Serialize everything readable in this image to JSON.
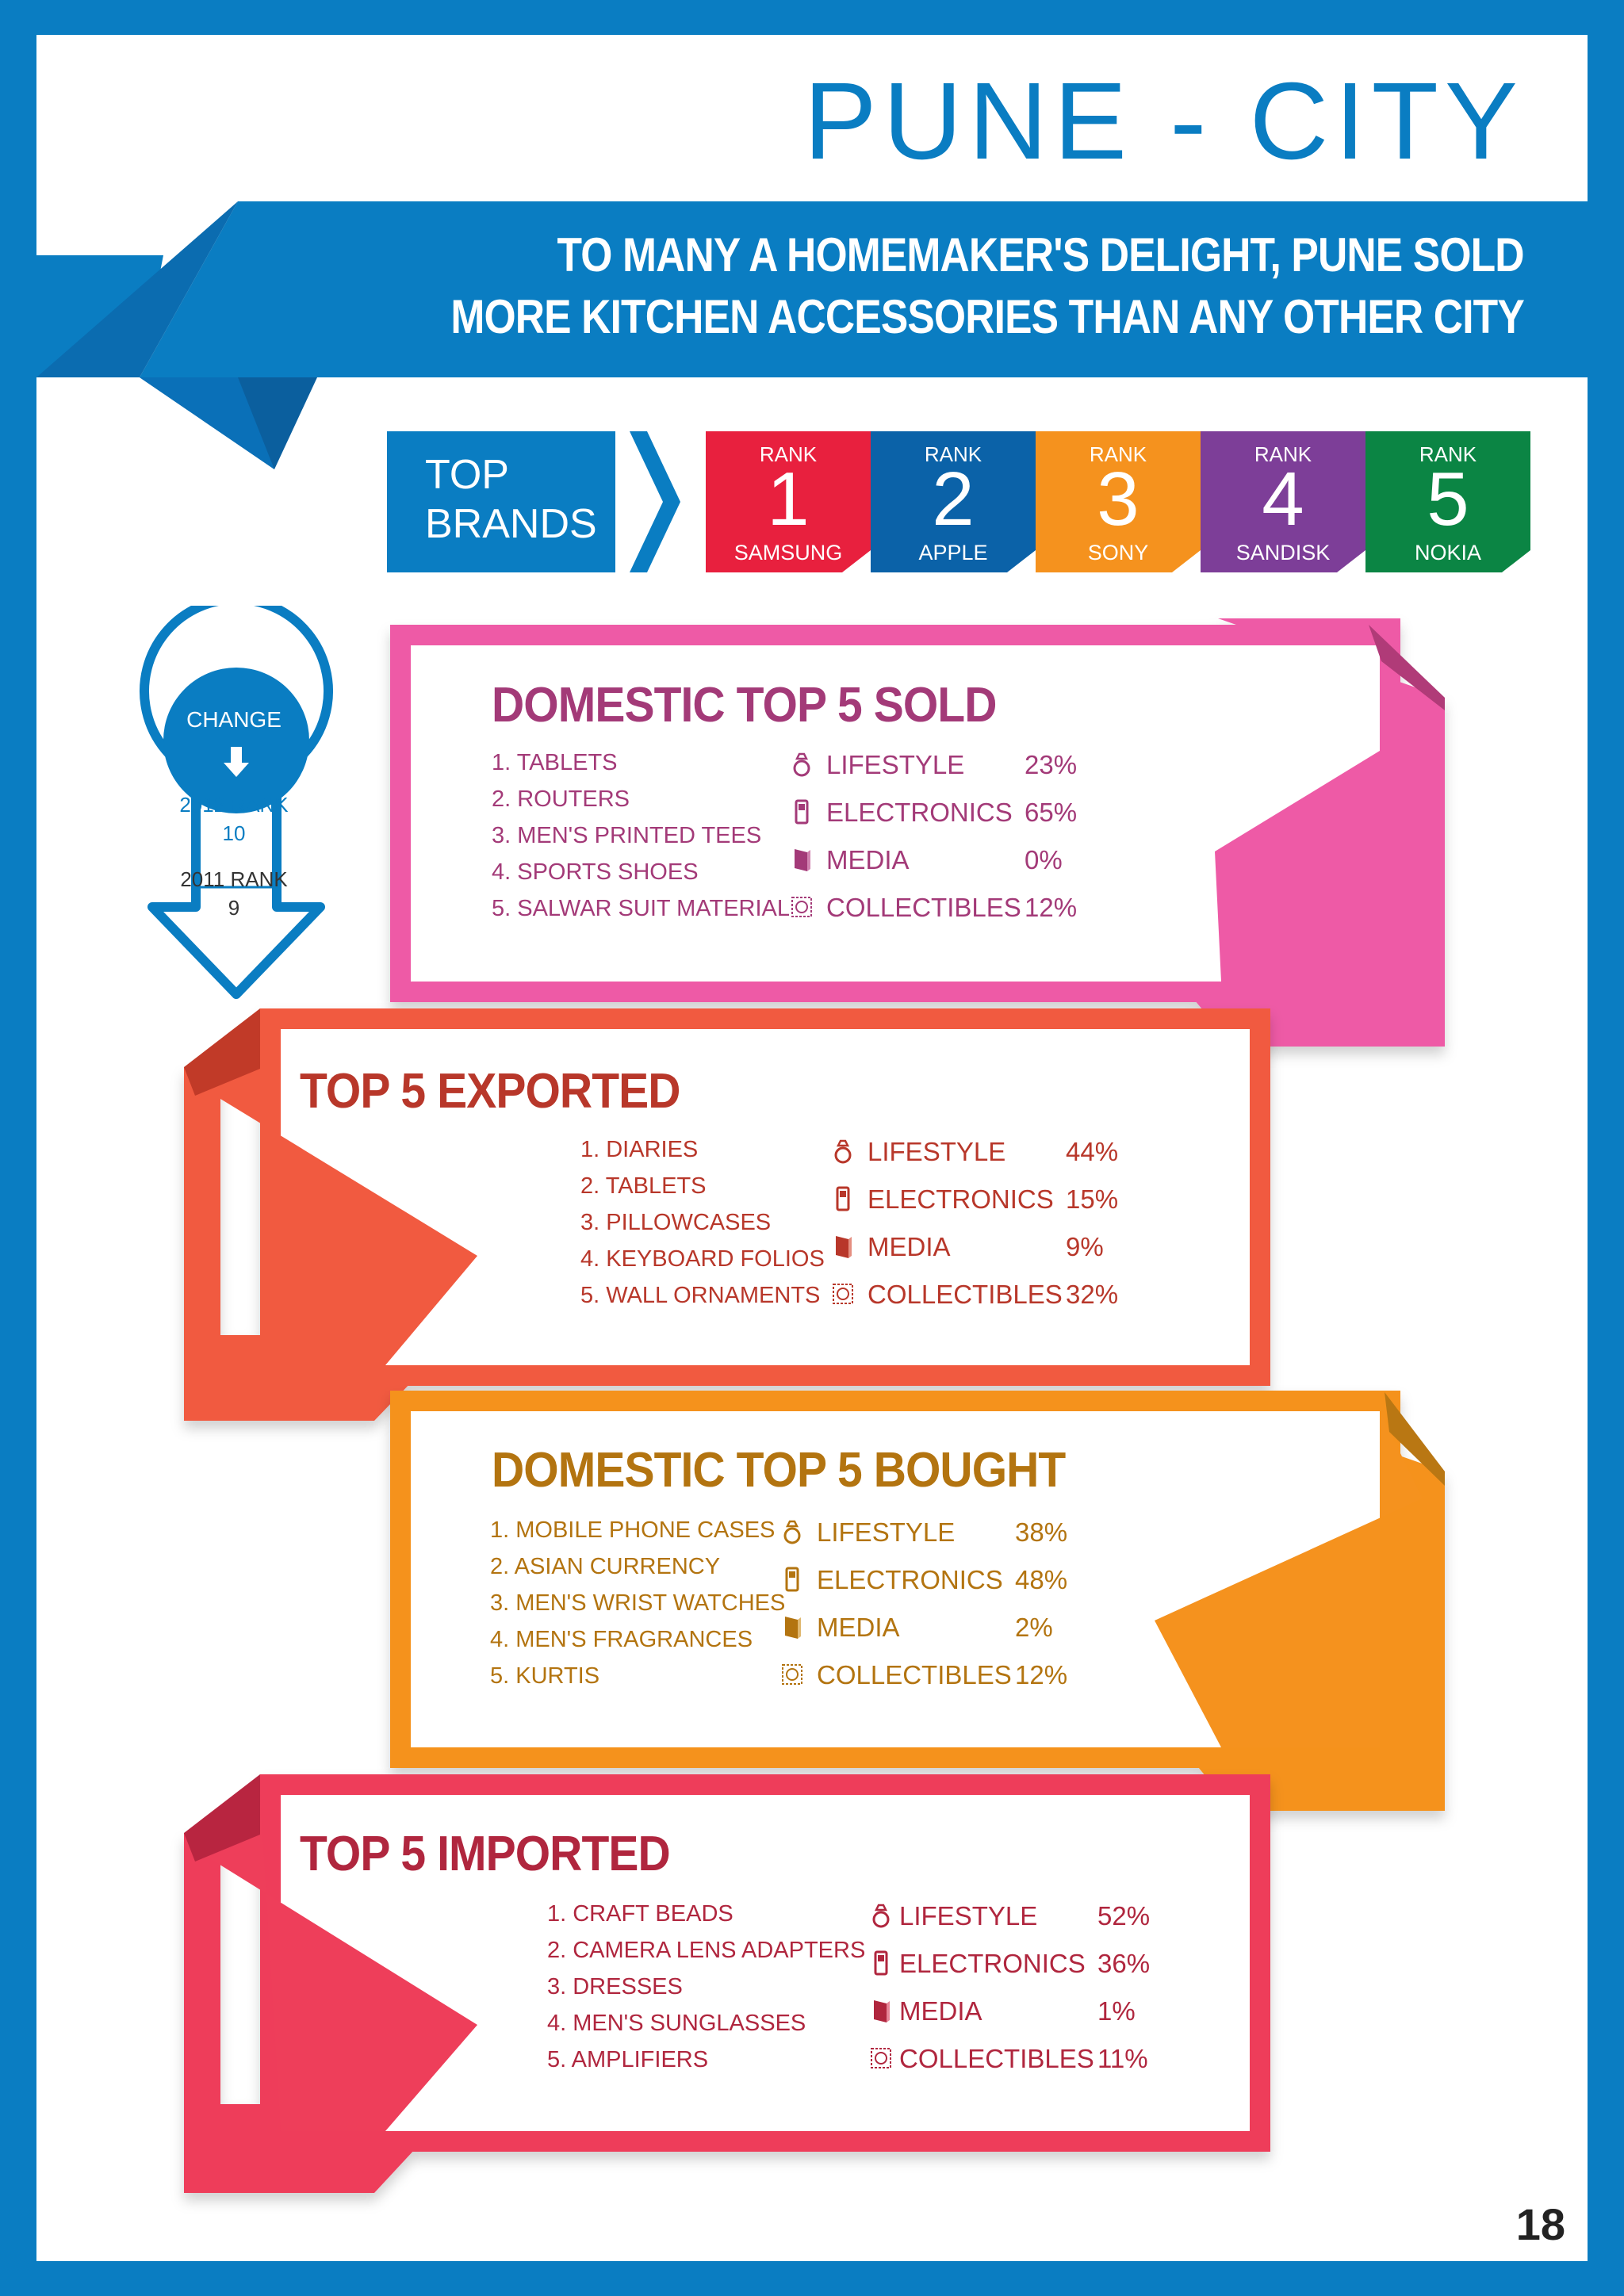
{
  "header": {
    "title": "PUNE - CITY",
    "subtitle_line1": "TO MANY A HOMEMAKER'S DELIGHT, PUNE SOLD",
    "subtitle_line2": "MORE KITCHEN ACCESSORIES THAN ANY OTHER CITY"
  },
  "brands": {
    "label_line1": "TOP",
    "label_line2": "BRANDS",
    "items": [
      {
        "rank_label": "RANK",
        "rank": "1",
        "name": "SAMSUNG",
        "color": "#e8203e"
      },
      {
        "rank_label": "RANK",
        "rank": "2",
        "name": "APPLE",
        "color": "#0b62a8"
      },
      {
        "rank_label": "RANK",
        "rank": "3",
        "name": "SONY",
        "color": "#f5921e"
      },
      {
        "rank_label": "RANK",
        "rank": "4",
        "name": "SANDISK",
        "color": "#7d3e98"
      },
      {
        "rank_label": "RANK",
        "rank": "5",
        "name": "NOKIA",
        "color": "#0b8544"
      }
    ]
  },
  "change": {
    "label": "CHANGE",
    "rank_2012_label": "2012 RANK",
    "rank_2012_value": "10",
    "rank_2011_label": "2011 RANK",
    "rank_2011_value": "9"
  },
  "sections": [
    {
      "title": "DOMESTIC TOP 5 SOLD",
      "color": "#ee5aa6",
      "text_color": "#a33a78",
      "items": [
        "1. TABLETS",
        "2. ROUTERS",
        "3. MEN'S PRINTED TEES",
        "4. SPORTS SHOES",
        "5. SALWAR SUIT MATERIAL"
      ],
      "categories": [
        {
          "icon": "ring-icon",
          "label": "LIFESTYLE",
          "pct": "23%"
        },
        {
          "icon": "phone-icon",
          "label": "ELECTRONICS",
          "pct": "65%"
        },
        {
          "icon": "book-icon",
          "label": "MEDIA",
          "pct": "0%"
        },
        {
          "icon": "stamp-icon",
          "label": "COLLECTIBLES",
          "pct": "12%"
        }
      ]
    },
    {
      "title": "TOP 5 EXPORTED",
      "color": "#f15a40",
      "text_color": "#b8372a",
      "items": [
        "1. DIARIES",
        "2. TABLETS",
        "3. PILLOWCASES",
        "4. KEYBOARD FOLIOS",
        "5. WALL ORNAMENTS"
      ],
      "categories": [
        {
          "icon": "ring-icon",
          "label": "LIFESTYLE",
          "pct": "44%"
        },
        {
          "icon": "phone-icon",
          "label": "ELECTRONICS",
          "pct": "15%"
        },
        {
          "icon": "book-icon",
          "label": "MEDIA",
          "pct": "9%"
        },
        {
          "icon": "stamp-icon",
          "label": "COLLECTIBLES",
          "pct": "32%"
        }
      ]
    },
    {
      "title": "DOMESTIC TOP 5 BOUGHT",
      "color": "#f5921e",
      "text_color": "#b37410",
      "items": [
        "1. MOBILE PHONE CASES",
        "2. ASIAN CURRENCY",
        "3. MEN'S WRIST WATCHES",
        "4. MEN'S FRAGRANCES",
        "5. KURTIS"
      ],
      "categories": [
        {
          "icon": "ring-icon",
          "label": "LIFESTYLE",
          "pct": "38%"
        },
        {
          "icon": "phone-icon",
          "label": "ELECTRONICS",
          "pct": "48%"
        },
        {
          "icon": "book-icon",
          "label": "MEDIA",
          "pct": "2%"
        },
        {
          "icon": "stamp-icon",
          "label": "COLLECTIBLES",
          "pct": "12%"
        }
      ]
    },
    {
      "title": "TOP 5 IMPORTED",
      "color": "#ee3e5a",
      "text_color": "#b0263e",
      "items": [
        "1. CRAFT BEADS",
        "2. CAMERA LENS ADAPTERS",
        "3. DRESSES",
        "4. MEN'S SUNGLASSES",
        "5. AMPLIFIERS"
      ],
      "categories": [
        {
          "icon": "ring-icon",
          "label": "LIFESTYLE",
          "pct": "52%"
        },
        {
          "icon": "phone-icon",
          "label": "ELECTRONICS",
          "pct": "36%"
        },
        {
          "icon": "book-icon",
          "label": "MEDIA",
          "pct": "1%"
        },
        {
          "icon": "stamp-icon",
          "label": "COLLECTIBLES",
          "pct": "11%"
        }
      ]
    }
  ],
  "page_number": "18"
}
